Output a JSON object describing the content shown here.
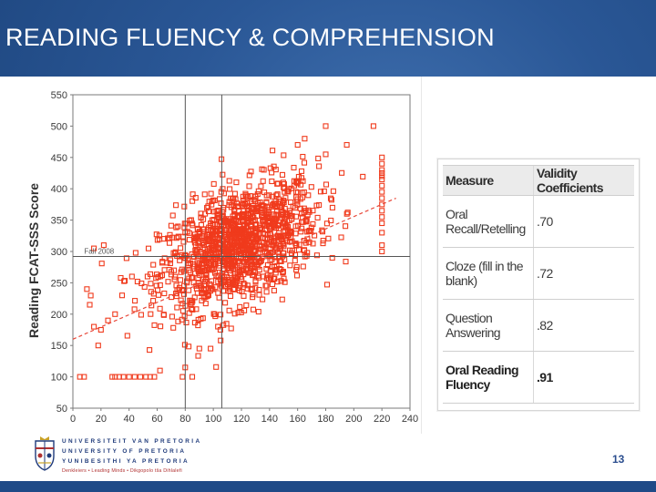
{
  "slide": {
    "title": "READING FLUENCY & COMPREHENSION",
    "page_number": "13"
  },
  "colors": {
    "background": "#1e4a86",
    "points": "#f03a1c",
    "trend": "#e8483a",
    "axis_text": "#3a3a3a"
  },
  "chart_data": {
    "type": "scatter",
    "title": "",
    "xlabel": "",
    "ylabel": "Reading FCAT-SSS Score",
    "xlim": [
      0,
      240
    ],
    "ylim": [
      50,
      550
    ],
    "x_ticks": [
      0,
      20,
      40,
      60,
      80,
      100,
      120,
      140,
      160,
      180,
      200,
      220,
      240
    ],
    "y_ticks": [
      50,
      100,
      150,
      200,
      250,
      300,
      350,
      400,
      450,
      500,
      550
    ],
    "reference_lines": {
      "x": [
        80,
        106
      ],
      "y": [
        292
      ]
    },
    "reference_label": "Fall 2008",
    "trendline": {
      "from": [
        0,
        160
      ],
      "to": [
        230,
        385
      ],
      "style": "dashed"
    },
    "cluster": {
      "center": [
        118,
        310
      ],
      "spread_x": 28,
      "spread_y": 45,
      "count": 1300
    },
    "outliers": [
      [
        5,
        100
      ],
      [
        8,
        100
      ],
      [
        28,
        100
      ],
      [
        30,
        100
      ],
      [
        33,
        100
      ],
      [
        36,
        100
      ],
      [
        40,
        100
      ],
      [
        44,
        100
      ],
      [
        48,
        100
      ],
      [
        52,
        100
      ],
      [
        55,
        100
      ],
      [
        58,
        100
      ],
      [
        62,
        110
      ],
      [
        78,
        100
      ],
      [
        85,
        100
      ],
      [
        80,
        115
      ],
      [
        90,
        145
      ],
      [
        98,
        145
      ],
      [
        105,
        175
      ],
      [
        180,
        500
      ],
      [
        214,
        500
      ],
      [
        165,
        480
      ],
      [
        160,
        470
      ],
      [
        180,
        455
      ],
      [
        195,
        470
      ],
      [
        220,
        450
      ],
      [
        220,
        440
      ],
      [
        220,
        430
      ],
      [
        220,
        425
      ],
      [
        220,
        420
      ],
      [
        220,
        415
      ],
      [
        220,
        405
      ],
      [
        220,
        395
      ],
      [
        220,
        385
      ],
      [
        220,
        375
      ],
      [
        220,
        365
      ],
      [
        220,
        355
      ],
      [
        220,
        345
      ],
      [
        220,
        330
      ],
      [
        220,
        310
      ],
      [
        220,
        300
      ],
      [
        15,
        305
      ],
      [
        22,
        310
      ],
      [
        10,
        240
      ],
      [
        12,
        215
      ],
      [
        15,
        180
      ],
      [
        18,
        150
      ],
      [
        20,
        175
      ],
      [
        30,
        200
      ],
      [
        35,
        230
      ],
      [
        42,
        260
      ],
      [
        25,
        190
      ]
    ]
  },
  "table": {
    "headers": [
      "Measure",
      "Validity Coefficients"
    ],
    "rows": [
      {
        "measure": "Oral Recall/Retelling",
        "coef": ".70"
      },
      {
        "measure": "Cloze (fill in the blank)",
        "coef": ".72"
      },
      {
        "measure": "Question Answering",
        "coef": ".82"
      },
      {
        "measure": "Oral Reading Fluency",
        "coef": ".91"
      }
    ]
  },
  "footer": {
    "line1": "UNIVERSITEIT VAN PRETORIA",
    "line2": "UNIVERSITY OF PRETORIA",
    "line3": "YUNIBESITHI YA PRETORIA",
    "motto": "Denkleiers • Leading Minds • Dikgopolo tša Dihlalefi"
  }
}
